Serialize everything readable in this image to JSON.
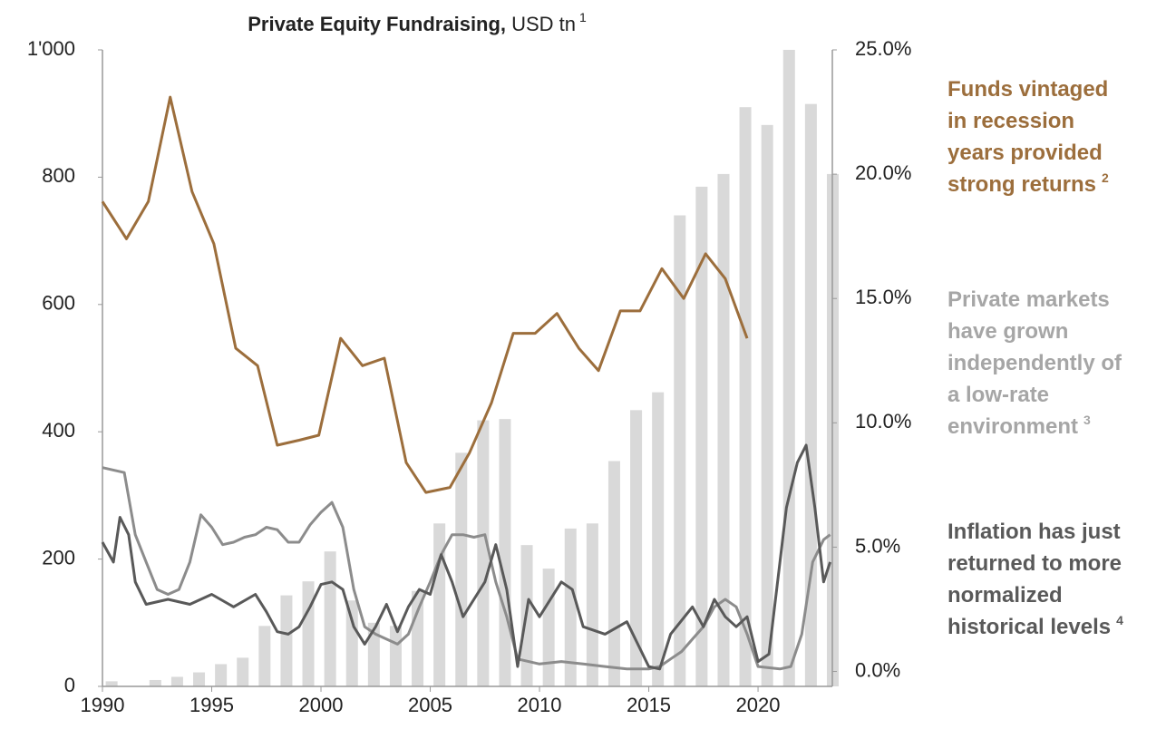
{
  "chart_data": {
    "type": "combo",
    "title": "Private Equity Fundraising,",
    "title_unit": "USD tn",
    "title_note": "1",
    "xlim": [
      1990,
      2023.4
    ],
    "xticks": [
      1990,
      1995,
      2000,
      2005,
      2010,
      2015,
      2020
    ],
    "ylim": [
      0,
      1000
    ],
    "yticks": [
      0,
      200,
      400,
      600,
      800,
      {
        "value": 1000,
        "label": "1'000"
      }
    ],
    "y2lim": [
      -0.6,
      25
    ],
    "y2ticks": [
      {
        "value": 0,
        "label": "0.0%"
      },
      {
        "value": 5,
        "label": "5.0%"
      },
      {
        "value": 10,
        "label": "10.0%"
      },
      {
        "value": 15,
        "label": "15.0%"
      },
      {
        "value": 20,
        "label": "20.0%"
      },
      {
        "value": 25,
        "label": "25.0%"
      }
    ],
    "series": [
      {
        "type": "bar",
        "color": "#d9d9d9",
        "x": [
          1990,
          1991,
          1992,
          1993,
          1994,
          1995,
          1996,
          1997,
          1998,
          1999,
          2000,
          2001,
          2002,
          2003,
          2004,
          2005,
          2006,
          2007,
          2008,
          2009,
          2010,
          2011,
          2012,
          2013,
          2014,
          2015,
          2016,
          2017,
          2018,
          2019,
          2020,
          2021,
          2022,
          2023
        ],
        "values": [
          8,
          0,
          10,
          15,
          22,
          35,
          45,
          95,
          143,
          165,
          212,
          135,
          100,
          95,
          150,
          256,
          367,
          418,
          420,
          222,
          185,
          248,
          256,
          354,
          434,
          462,
          740,
          785,
          805,
          910,
          882,
          1000,
          915,
          805
        ]
      },
      {
        "type": "line",
        "axis": "y2",
        "color": "#9c6e3c",
        "width": 3,
        "x": [
          1990.0,
          1991.1,
          1992.1,
          1993.1,
          1994.1,
          1995.1,
          1996.1,
          1997.1,
          1998.0,
          1999.0,
          1999.9,
          2000.9,
          2001.9,
          2002.9,
          2003.9,
          2004.8,
          2005.9,
          2006.8,
          2007.8,
          2008.8,
          2009.8,
          2010.8,
          2011.8,
          2012.7,
          2013.7,
          2014.6,
          2015.6,
          2016.6,
          2017.6,
          2018.5,
          2019.5
        ],
        "values": [
          18.9,
          17.4,
          18.9,
          23.1,
          19.3,
          17.2,
          13.0,
          12.3,
          9.1,
          9.3,
          9.5,
          13.4,
          12.3,
          12.6,
          8.4,
          7.2,
          7.4,
          8.8,
          10.8,
          13.6,
          13.6,
          14.4,
          13.0,
          12.1,
          14.5,
          14.5,
          16.2,
          15.0,
          16.8,
          15.8,
          13.4
        ]
      },
      {
        "type": "line",
        "axis": "y2",
        "color": "#8c8c8c",
        "width": 3,
        "x": [
          1990,
          1991,
          1991.5,
          1992,
          1992.5,
          1993,
          1993.5,
          1994,
          1994.5,
          1995,
          1995.5,
          1996,
          1996.5,
          1997,
          1997.5,
          1998,
          1998.5,
          1999,
          1999.5,
          2000,
          2000.5,
          2001,
          2001.5,
          2002,
          2002.5,
          2003,
          2003.5,
          2004,
          2004.5,
          2005,
          2005.5,
          2006,
          2006.5,
          2007,
          2007.5,
          2008,
          2008.5,
          2009,
          2009.5,
          2010,
          2011,
          2012,
          2013,
          2014,
          2015,
          2015.5,
          2016,
          2016.5,
          2017,
          2017.5,
          2018,
          2018.5,
          2019,
          2019.5,
          2020,
          2021,
          2021.5,
          2022,
          2022.5,
          2023,
          2023.3
        ],
        "values": [
          8.2,
          8.0,
          5.5,
          4.4,
          3.3,
          3.1,
          3.3,
          4.4,
          6.3,
          5.8,
          5.1,
          5.2,
          5.4,
          5.5,
          5.8,
          5.7,
          5.2,
          5.2,
          5.9,
          6.4,
          6.8,
          5.8,
          3.3,
          1.8,
          1.5,
          1.3,
          1.1,
          1.5,
          2.6,
          3.6,
          4.7,
          5.5,
          5.5,
          5.4,
          5.5,
          3.6,
          2.2,
          0.5,
          0.4,
          0.3,
          0.4,
          0.3,
          0.2,
          0.1,
          0.1,
          0.2,
          0.5,
          0.8,
          1.3,
          1.8,
          2.6,
          2.9,
          2.6,
          1.5,
          0.2,
          0.1,
          0.2,
          1.5,
          4.4,
          5.3,
          5.5
        ]
      },
      {
        "type": "line",
        "axis": "y2",
        "color": "#595959",
        "width": 3,
        "x": [
          1990,
          1990.5,
          1990.8,
          1991.2,
          1991.5,
          1992,
          1993,
          1994,
          1995,
          1996,
          1997,
          1997.5,
          1998,
          1998.5,
          1999,
          1999.5,
          2000,
          2000.5,
          2001,
          2001.5,
          2002,
          2002.5,
          2003,
          2003.5,
          2004,
          2004.5,
          2005,
          2005.5,
          2006,
          2006.5,
          2007,
          2007.5,
          2008,
          2008.5,
          2009,
          2009.5,
          2010,
          2011,
          2011.5,
          2012,
          2013,
          2014,
          2015,
          2015.5,
          2016,
          2017,
          2017.5,
          2018,
          2018.5,
          2019,
          2019.5,
          2020,
          2020.5,
          2021,
          2021.3,
          2021.8,
          2022.2,
          2022.6,
          2023,
          2023.3
        ],
        "values": [
          5.2,
          4.4,
          6.2,
          5.5,
          3.6,
          2.7,
          2.9,
          2.7,
          3.1,
          2.6,
          3.1,
          2.4,
          1.6,
          1.5,
          1.8,
          2.6,
          3.5,
          3.6,
          3.3,
          1.8,
          1.1,
          1.8,
          2.7,
          1.6,
          2.6,
          3.3,
          3.1,
          4.7,
          3.6,
          2.2,
          2.9,
          3.6,
          5.1,
          3.3,
          0.2,
          2.9,
          2.2,
          3.6,
          3.3,
          1.8,
          1.5,
          2.0,
          0.2,
          0.1,
          1.5,
          2.6,
          1.8,
          2.9,
          2.2,
          1.8,
          2.2,
          0.4,
          0.7,
          4.4,
          6.6,
          8.4,
          9.1,
          6.6,
          3.6,
          4.4
        ]
      }
    ],
    "annotations": [
      {
        "color": "#9c6e3c",
        "lines": [
          "Funds vintaged",
          "in recession",
          "years provided",
          "strong returns"
        ],
        "note": "2"
      },
      {
        "color": "#a6a6a6",
        "lines": [
          "Private markets",
          "have grown",
          "independently of",
          "a low-rate",
          "environment"
        ],
        "note": "3"
      },
      {
        "color": "#595959",
        "lines": [
          "Inflation has just",
          "returned to more",
          "normalized",
          "historical levels"
        ],
        "note": "4"
      }
    ]
  }
}
